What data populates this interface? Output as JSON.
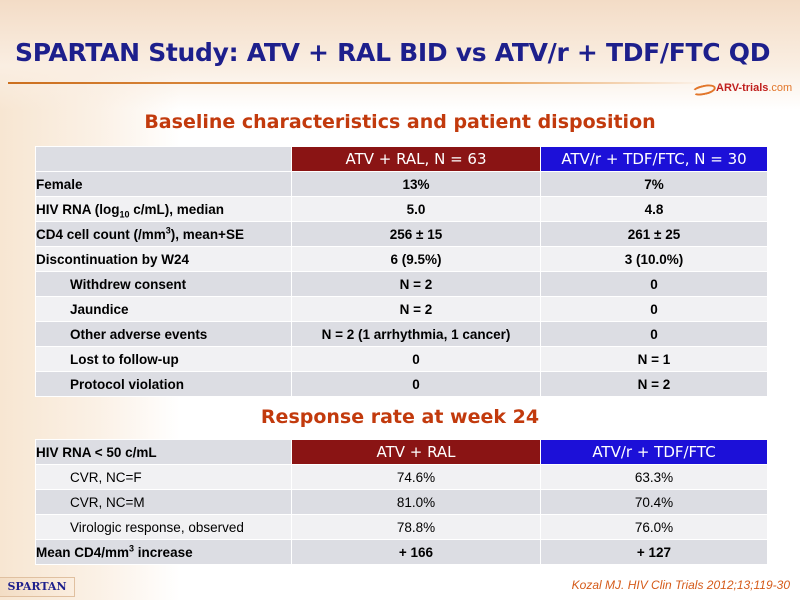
{
  "slide": {
    "title": "SPARTAN Study: ATV + RAL BID vs ATV/r + TDF/FTC QD",
    "logo_text": "ARV-trials",
    "logo_domain": ".com",
    "footer_badge": "SPARTAN",
    "citation": "Kozal MJ. HIV Clin Trials 2012;13;119-30",
    "colors": {
      "title": "#1d1f8c",
      "section_heading": "#c23a0d",
      "atv_ral_header": "#8a1414",
      "atv_r_header": "#1c10d8"
    }
  },
  "baseline": {
    "heading": "Baseline characteristics and patient disposition",
    "col1": "ATV + RAL, N = 63",
    "col2": "ATV/r + TDF/FTC, N = 30",
    "rows": [
      {
        "label": "Female",
        "v1": "13%",
        "v2": "7%"
      },
      {
        "label_pre": "HIV RNA (log",
        "label_sub": "10",
        "label_post": " c/mL), median",
        "v1": "5.0",
        "v2": "4.8"
      },
      {
        "label_pre": "CD4 cell count (/mm",
        "label_sup": "3",
        "label_post": "), mean+SE",
        "v1": "256 ± 15",
        "v2": "261 ± 25"
      },
      {
        "label": "Discontinuation by W24",
        "v1": "6 (9.5%)",
        "v2": "3 (10.0%)"
      },
      {
        "label": "Withdrew consent",
        "v1": "N = 2",
        "v2": "0"
      },
      {
        "label": "Jaundice",
        "v1": "N = 2",
        "v2": "0"
      },
      {
        "label": "Other adverse events",
        "v1": "N = 2 (1 arrhythmia, 1 cancer)",
        "v2": "0"
      },
      {
        "label": "Lost to follow-up",
        "v1": "0",
        "v2": "N = 1"
      },
      {
        "label": "Protocol violation",
        "v1": "0",
        "v2": "N = 2"
      }
    ]
  },
  "response": {
    "heading": "Response rate at week 24",
    "header_label": "HIV RNA < 50 c/mL",
    "col1": "ATV + RAL",
    "col2": "ATV/r + TDF/FTC",
    "rows": [
      {
        "label": "CVR, NC=F",
        "v1": "74.6%",
        "v2": "63.3%"
      },
      {
        "label": "CVR, NC=M",
        "v1": "81.0%",
        "v2": "70.4%"
      },
      {
        "label": "Virologic response, observed",
        "v1": "78.8%",
        "v2": "76.0%"
      },
      {
        "label_pre": "Mean CD4/mm",
        "label_sup": "3",
        "label_post": " increase",
        "v1": "+ 166",
        "v2": "+ 127"
      }
    ]
  }
}
